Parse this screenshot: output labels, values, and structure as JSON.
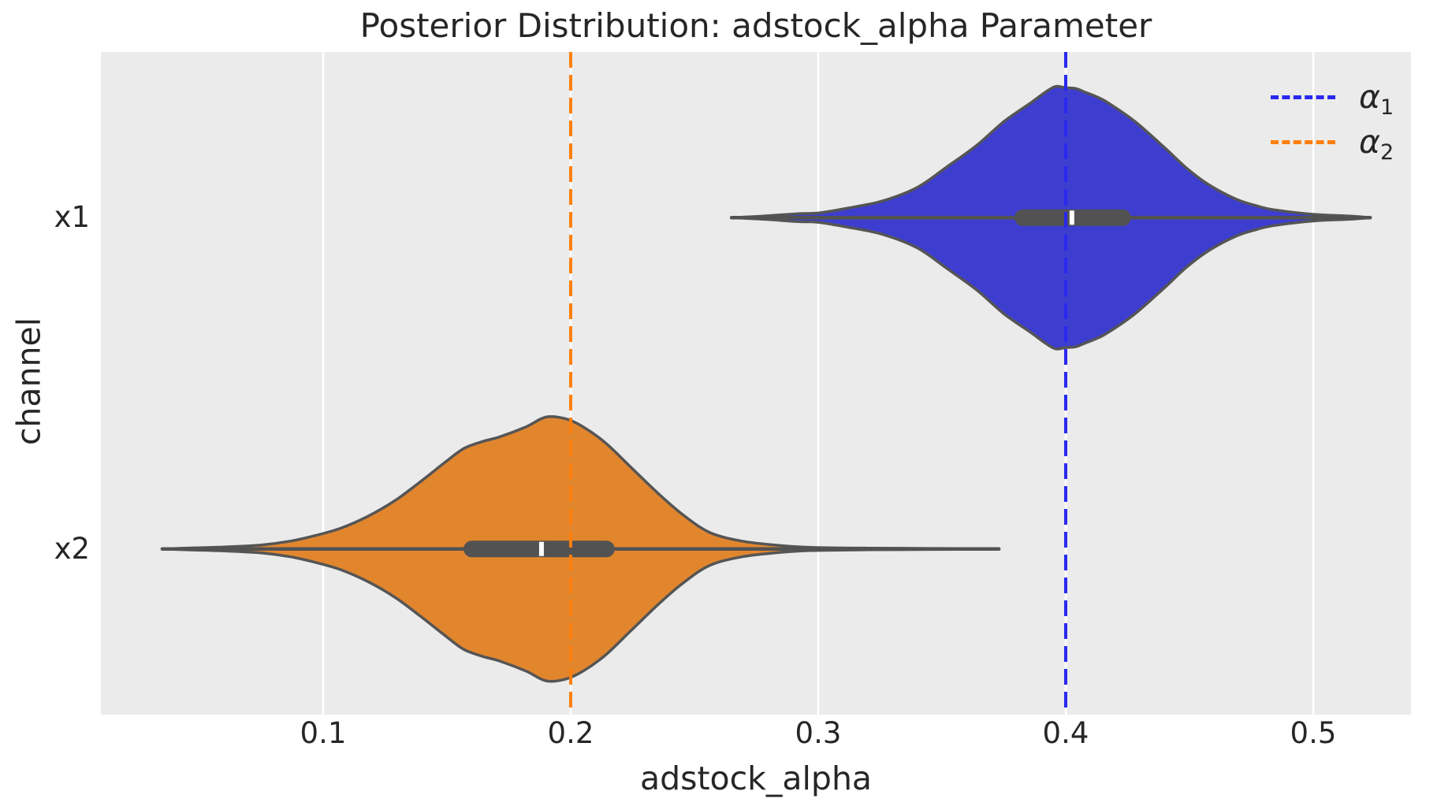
{
  "title": "Posterior Distribution: adstock_alpha Parameter",
  "x_axis": {
    "label": "adstock_alpha",
    "ticks": [
      "0.1",
      "0.2",
      "0.3",
      "0.4",
      "0.5"
    ],
    "tick_values": [
      0.1,
      0.2,
      0.3,
      0.4,
      0.5
    ],
    "range": [
      0.0102,
      0.5395
    ]
  },
  "y_axis": {
    "label": "channel",
    "categories": [
      "x1",
      "x2"
    ]
  },
  "legend": [
    {
      "symbol": "α",
      "sub": "1",
      "color": "#2828f0",
      "style": "dashed"
    },
    {
      "symbol": "α",
      "sub": "2",
      "color": "#ff7f0e",
      "style": "dashed"
    }
  ],
  "colors": {
    "figure_bg": "#ffffff",
    "axes_bg": "#ebebeb",
    "grid": "#ffffff",
    "violin_edge": "#555555",
    "box": "#525252",
    "median": "#ffffff",
    "text": "#262626"
  },
  "chart_data": {
    "type": "violin",
    "orientation": "horizontal",
    "title": "Posterior Distribution: adstock_alpha Parameter",
    "xlabel": "adstock_alpha",
    "ylabel": "channel",
    "xlim": [
      0.0102,
      0.5395
    ],
    "grid": "vertical-only",
    "categories": [
      "x1",
      "x2"
    ],
    "series": [
      {
        "channel": "x1",
        "fill_color": "#3d3dd0",
        "median": 0.4025,
        "q1": 0.3793,
        "q3": 0.4264,
        "whisker_low": 0.265,
        "whisker_high": 0.523,
        "density_x": [
          0.265,
          0.278,
          0.292,
          0.3,
          0.312,
          0.326,
          0.34,
          0.352,
          0.364,
          0.375,
          0.386,
          0.392,
          0.396,
          0.4,
          0.404,
          0.408,
          0.412,
          0.417,
          0.428,
          0.44,
          0.449,
          0.458,
          0.469,
          0.477,
          0.484,
          0.5,
          0.515,
          0.523
        ],
        "density": [
          0,
          0.012,
          0.03,
          0.035,
          0.072,
          0.126,
          0.228,
          0.383,
          0.545,
          0.725,
          0.868,
          0.95,
          0.99,
          0.98,
          0.975,
          0.945,
          0.916,
          0.868,
          0.725,
          0.527,
          0.371,
          0.246,
          0.138,
          0.09,
          0.06,
          0.025,
          0.012,
          0
        ]
      },
      {
        "channel": "x2",
        "fill_color": "#e2862e",
        "median": 0.1882,
        "q1": 0.1567,
        "q3": 0.2178,
        "whisker_low": 0.035,
        "whisker_high": 0.373,
        "density_x": [
          0.035,
          0.048,
          0.06,
          0.075,
          0.087,
          0.097,
          0.107,
          0.118,
          0.129,
          0.139,
          0.15,
          0.157,
          0.165,
          0.171,
          0.182,
          0.19,
          0.198,
          0.205,
          0.214,
          0.224,
          0.235,
          0.245,
          0.256,
          0.269,
          0.285,
          0.297,
          0.32,
          0.345,
          0.373
        ],
        "density": [
          0,
          0.008,
          0.015,
          0.03,
          0.06,
          0.102,
          0.156,
          0.246,
          0.365,
          0.503,
          0.665,
          0.76,
          0.814,
          0.844,
          0.922,
          0.995,
          0.982,
          0.922,
          0.802,
          0.623,
          0.425,
          0.263,
          0.126,
          0.06,
          0.025,
          0.012,
          0.006,
          0.004,
          0
        ]
      }
    ],
    "reference_lines": [
      {
        "label": "α₁",
        "value": 0.4,
        "color": "#2828f0",
        "style": "dashed"
      },
      {
        "label": "α₂",
        "value": 0.2,
        "color": "#ff7f0e",
        "style": "dashed"
      }
    ],
    "legend_position": "upper-right"
  }
}
